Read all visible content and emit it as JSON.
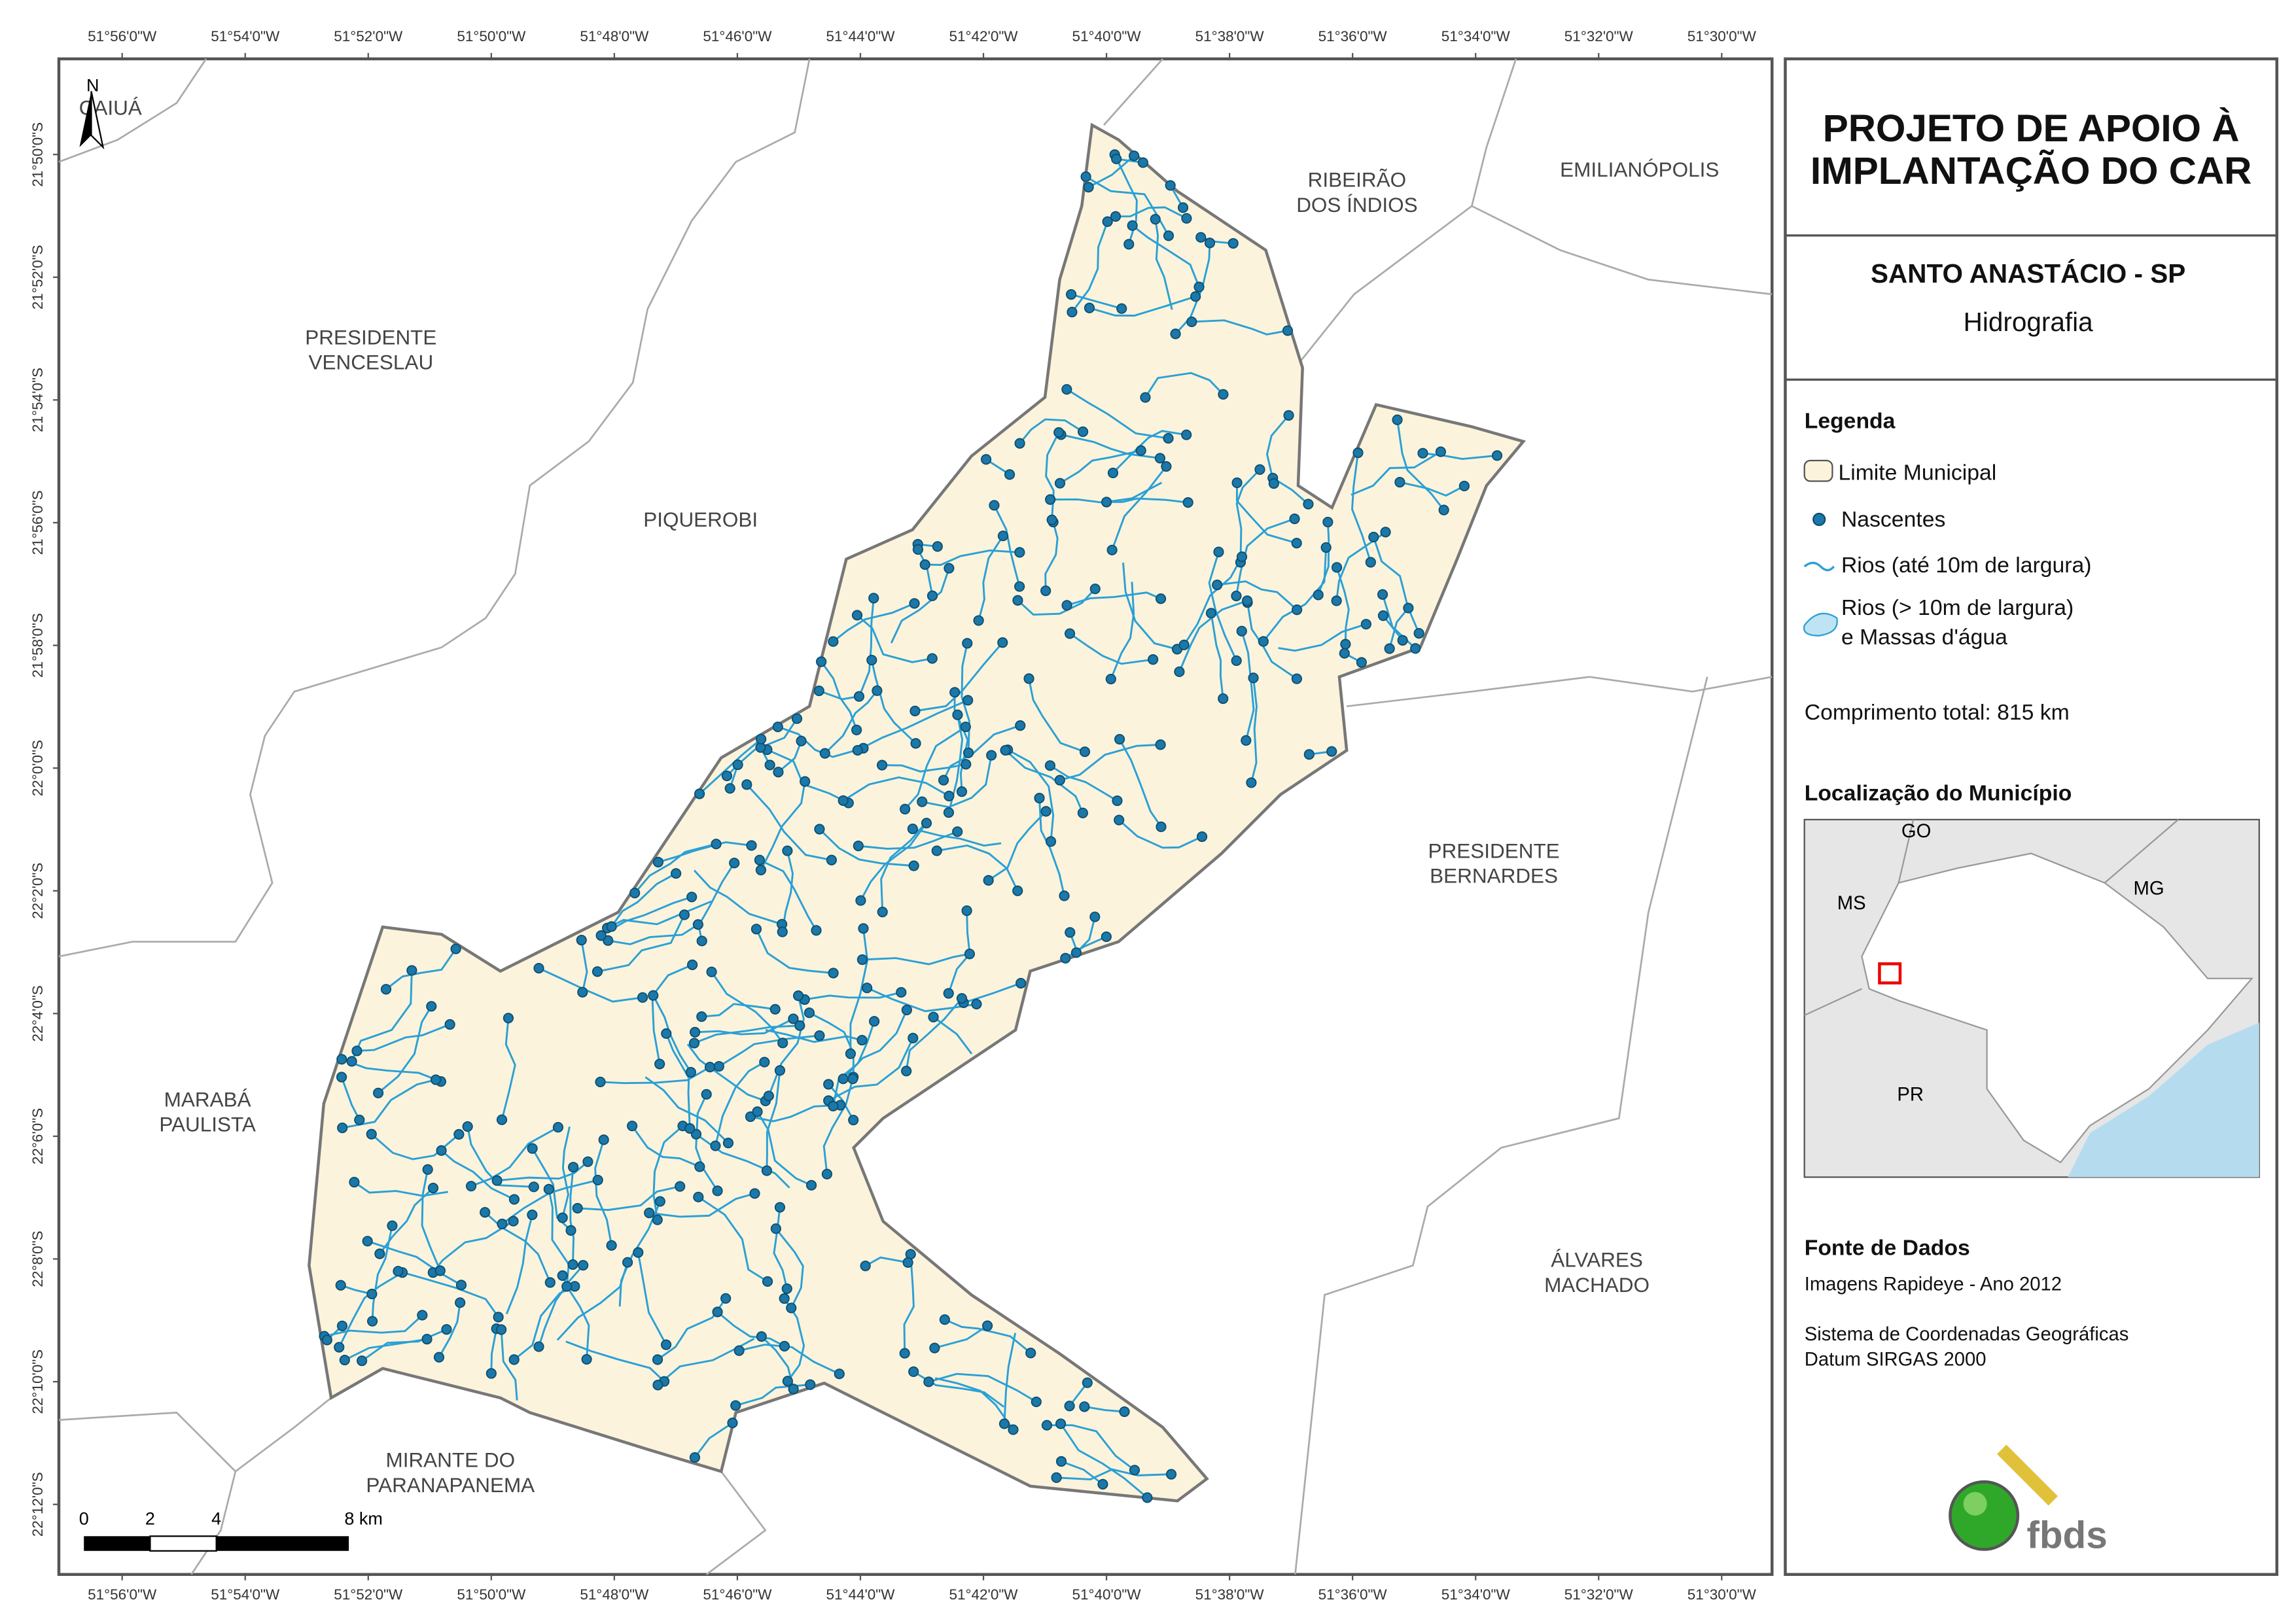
{
  "map": {
    "longitudes": [
      "51°56'0\"W",
      "51°54'0\"W",
      "51°52'0\"W",
      "51°50'0\"W",
      "51°48'0\"W",
      "51°46'0\"W",
      "51°44'0\"W",
      "51°42'0\"W",
      "51°40'0\"W",
      "51°38'0\"W",
      "51°36'0\"W",
      "51°34'0\"W",
      "51°32'0\"W",
      "51°30'0\"W"
    ],
    "latitudes": [
      "21°50'0\"S",
      "21°52'0\"S",
      "21°54'0\"S",
      "21°56'0\"S",
      "21°58'0\"S",
      "22°0'0\"S",
      "22°2'0\"S",
      "22°4'0\"S",
      "22°6'0\"S",
      "22°8'0\"S",
      "22°10'0\"S",
      "22°12'0\"S"
    ],
    "places": [
      [
        "CAIUÁ"
      ],
      [
        "PRESIDENTE",
        "VENCESLAU"
      ],
      [
        "RIBEIRÃO",
        "DOS ÍNDIOS"
      ],
      [
        "EMILIANÓPOLIS"
      ],
      [
        "PIQUEROBI"
      ],
      [
        "PRESIDENTE",
        "BERNARDES"
      ],
      [
        "MARABÁ",
        "PAULISTA"
      ],
      [
        "ÁLVARES",
        "MACHADO"
      ],
      [
        "MIRANTE DO",
        "PARANAPANEMA"
      ]
    ],
    "north": "N",
    "scale_labels": [
      "0",
      "2",
      "4",
      "8 km"
    ]
  },
  "panel": {
    "title": [
      "PROJETO DE APOIO À",
      "IMPLANTAÇÃO DO CAR"
    ],
    "subtitle": "SANTO ANASTÁCIO - SP",
    "theme": "Hidrografia",
    "legend_title": "Legenda",
    "legend": [
      "Limite Municipal",
      "Nascentes",
      "Rios (até 10m de largura)",
      "Rios (> 10m de largura)",
      "e Massas d'água"
    ],
    "total": "Comprimento total:  815 km",
    "location_title": "Localização do Município",
    "location_labels": [
      "GO",
      "MS",
      "MG",
      "PR"
    ],
    "source_title": "Fonte de Dados",
    "source": [
      "Imagens Rapideye - Ano 2012",
      "Sistema de Coordenadas Geográficas",
      "Datum SIRGAS 2000"
    ],
    "logo": "fbds"
  }
}
